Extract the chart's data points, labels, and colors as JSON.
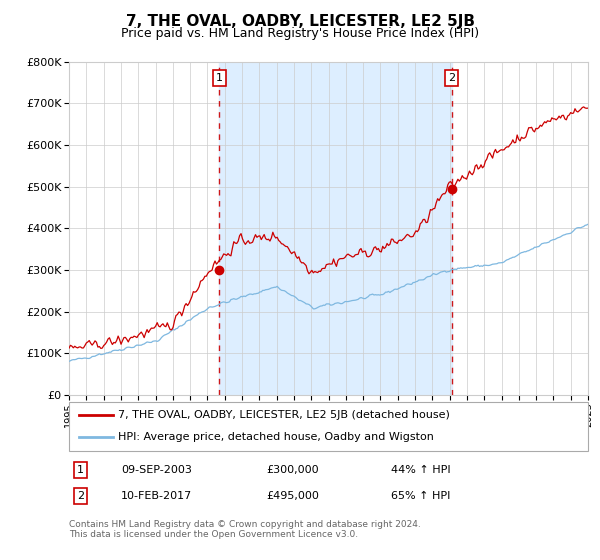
{
  "title": "7, THE OVAL, OADBY, LEICESTER, LE2 5JB",
  "subtitle": "Price paid vs. HM Land Registry's House Price Index (HPI)",
  "x_start_year": 1995,
  "x_end_year": 2025,
  "ylim": [
    0,
    800000
  ],
  "yticks": [
    0,
    100000,
    200000,
    300000,
    400000,
    500000,
    600000,
    700000,
    800000
  ],
  "ytick_labels": [
    "£0",
    "£100K",
    "£200K",
    "£300K",
    "£400K",
    "£500K",
    "£600K",
    "£700K",
    "£800K"
  ],
  "hpi_color": "#7fb8e0",
  "price_color": "#cc0000",
  "bg_band_color": "#ddeeff",
  "grid_color": "#cccccc",
  "sale1_year": 2003.69,
  "sale1_price": 300000,
  "sale1_label": "1",
  "sale1_date": "09-SEP-2003",
  "sale1_pct": "44%",
  "sale2_year": 2017.11,
  "sale2_price": 495000,
  "sale2_label": "2",
  "sale2_date": "10-FEB-2017",
  "sale2_pct": "65%",
  "legend_line1": "7, THE OVAL, OADBY, LEICESTER, LE2 5JB (detached house)",
  "legend_line2": "HPI: Average price, detached house, Oadby and Wigston",
  "footer": "Contains HM Land Registry data © Crown copyright and database right 2024.\nThis data is licensed under the Open Government Licence v3.0."
}
